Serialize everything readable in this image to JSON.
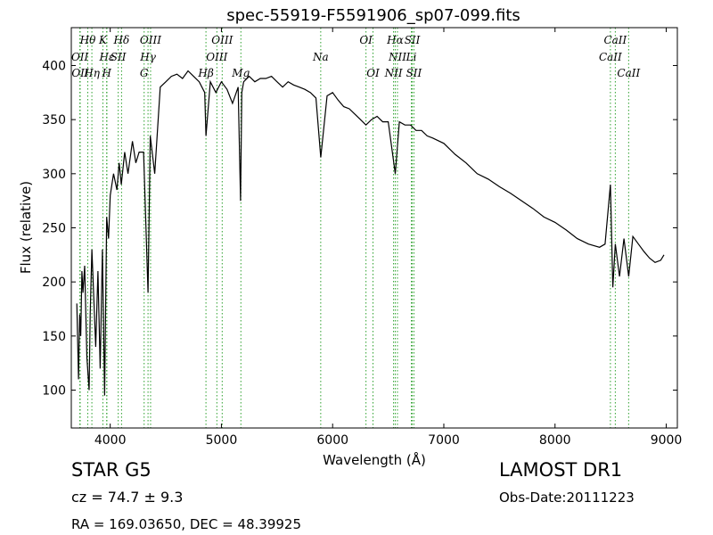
{
  "chart_data": {
    "type": "line",
    "title": "spec-55919-F5591906_sp07-099.fits",
    "xlabel": "Wavelength (Å)",
    "ylabel": "Flux (relative)",
    "xlim": [
      3650,
      9100
    ],
    "ylim": [
      65,
      435
    ],
    "grid": false,
    "x_ticks": [
      4000,
      5000,
      6000,
      7000,
      8000,
      9000
    ],
    "y_ticks": [
      100,
      150,
      200,
      250,
      300,
      350,
      400
    ],
    "line_color": "#000000",
    "marker_color": "#2ca02c",
    "spectrum": {
      "x": [
        3700,
        3715,
        3725,
        3735,
        3745,
        3755,
        3770,
        3790,
        3810,
        3820,
        3835,
        3850,
        3870,
        3890,
        3910,
        3930,
        3950,
        3968,
        3985,
        4000,
        4030,
        4060,
        4080,
        4100,
        4130,
        4160,
        4200,
        4230,
        4260,
        4300,
        4340,
        4360,
        4400,
        4450,
        4500,
        4550,
        4600,
        4650,
        4700,
        4750,
        4800,
        4850,
        4861,
        4900,
        4950,
        5000,
        5050,
        5100,
        5150,
        5172,
        5183,
        5200,
        5250,
        5300,
        5350,
        5400,
        5450,
        5500,
        5550,
        5600,
        5650,
        5700,
        5750,
        5800,
        5850,
        5893,
        5950,
        6000,
        6050,
        6100,
        6150,
        6200,
        6250,
        6300,
        6350,
        6400,
        6450,
        6500,
        6563,
        6600,
        6650,
        6700,
        6750,
        6800,
        6850,
        6900,
        7000,
        7100,
        7200,
        7300,
        7400,
        7500,
        7600,
        7700,
        7800,
        7900,
        8000,
        8100,
        8200,
        8300,
        8400,
        8450,
        8498,
        8520,
        8542,
        8580,
        8620,
        8662,
        8700,
        8750,
        8800,
        8850,
        8900,
        8950,
        8980
      ],
      "y": [
        180,
        110,
        170,
        150,
        210,
        190,
        215,
        130,
        100,
        170,
        230,
        190,
        140,
        210,
        120,
        230,
        95,
        260,
        240,
        280,
        300,
        285,
        310,
        290,
        320,
        300,
        330,
        310,
        320,
        320,
        190,
        335,
        300,
        380,
        385,
        390,
        392,
        388,
        395,
        390,
        385,
        375,
        335,
        385,
        375,
        385,
        378,
        365,
        380,
        275,
        375,
        385,
        390,
        385,
        388,
        388,
        390,
        385,
        380,
        385,
        382,
        380,
        378,
        375,
        370,
        315,
        372,
        375,
        368,
        362,
        360,
        355,
        350,
        345,
        350,
        353,
        348,
        348,
        300,
        348,
        345,
        345,
        340,
        340,
        335,
        333,
        328,
        318,
        310,
        300,
        295,
        288,
        282,
        275,
        268,
        260,
        255,
        248,
        240,
        235,
        232,
        235,
        290,
        195,
        235,
        205,
        240,
        205,
        242,
        235,
        228,
        222,
        218,
        220,
        225
      ]
    },
    "lines": [
      {
        "label": "Hθ",
        "wavelength": 3798,
        "row": 1
      },
      {
        "label": "K",
        "wavelength": 3934,
        "row": 1
      },
      {
        "label": "Hδ",
        "wavelength": 4102,
        "row": 1
      },
      {
        "label": "OIII",
        "wavelength": 4363,
        "row": 1
      },
      {
        "label": "OIII",
        "wavelength": 5007,
        "row": 1
      },
      {
        "label": "OI",
        "wavelength": 6300,
        "row": 1
      },
      {
        "label": "Hα",
        "wavelength": 6563,
        "row": 1
      },
      {
        "label": "SII",
        "wavelength": 6716,
        "row": 1
      },
      {
        "label": "CaII",
        "wavelength": 8542,
        "row": 1
      },
      {
        "label": "OII",
        "wavelength": 3727,
        "row": 2
      },
      {
        "label": "Hε",
        "wavelength": 3970,
        "row": 2
      },
      {
        "label": "SII",
        "wavelength": 4072,
        "row": 2
      },
      {
        "label": "Hγ",
        "wavelength": 4340,
        "row": 2
      },
      {
        "label": "OIII",
        "wavelength": 4959,
        "row": 2
      },
      {
        "label": "Na",
        "wavelength": 5893,
        "row": 2
      },
      {
        "label": "NII",
        "wavelength": 6583,
        "row": 2
      },
      {
        "label": "Li",
        "wavelength": 6708,
        "row": 2
      },
      {
        "label": "CaII",
        "wavelength": 8498,
        "row": 2
      },
      {
        "label": "OII",
        "wavelength": 3730,
        "row": 3
      },
      {
        "label": "Hη",
        "wavelength": 3835,
        "row": 3
      },
      {
        "label": "H",
        "wavelength": 3968,
        "row": 3
      },
      {
        "label": "G",
        "wavelength": 4305,
        "row": 3
      },
      {
        "label": "Hβ",
        "wavelength": 4861,
        "row": 3
      },
      {
        "label": "Mg",
        "wavelength": 5175,
        "row": 3
      },
      {
        "label": "OI",
        "wavelength": 6363,
        "row": 3
      },
      {
        "label": "NII",
        "wavelength": 6548,
        "row": 3
      },
      {
        "label": "SII",
        "wavelength": 6731,
        "row": 3
      },
      {
        "label": "CaII",
        "wavelength": 8662,
        "row": 3
      }
    ]
  },
  "info": {
    "classification": "STAR   G5",
    "redshift": "cz = 74.7 ± 9.3",
    "coords": "RA = 169.03650, DEC = 48.39925",
    "survey": "LAMOST DR1",
    "obs_date": "Obs-Date:20111223"
  }
}
